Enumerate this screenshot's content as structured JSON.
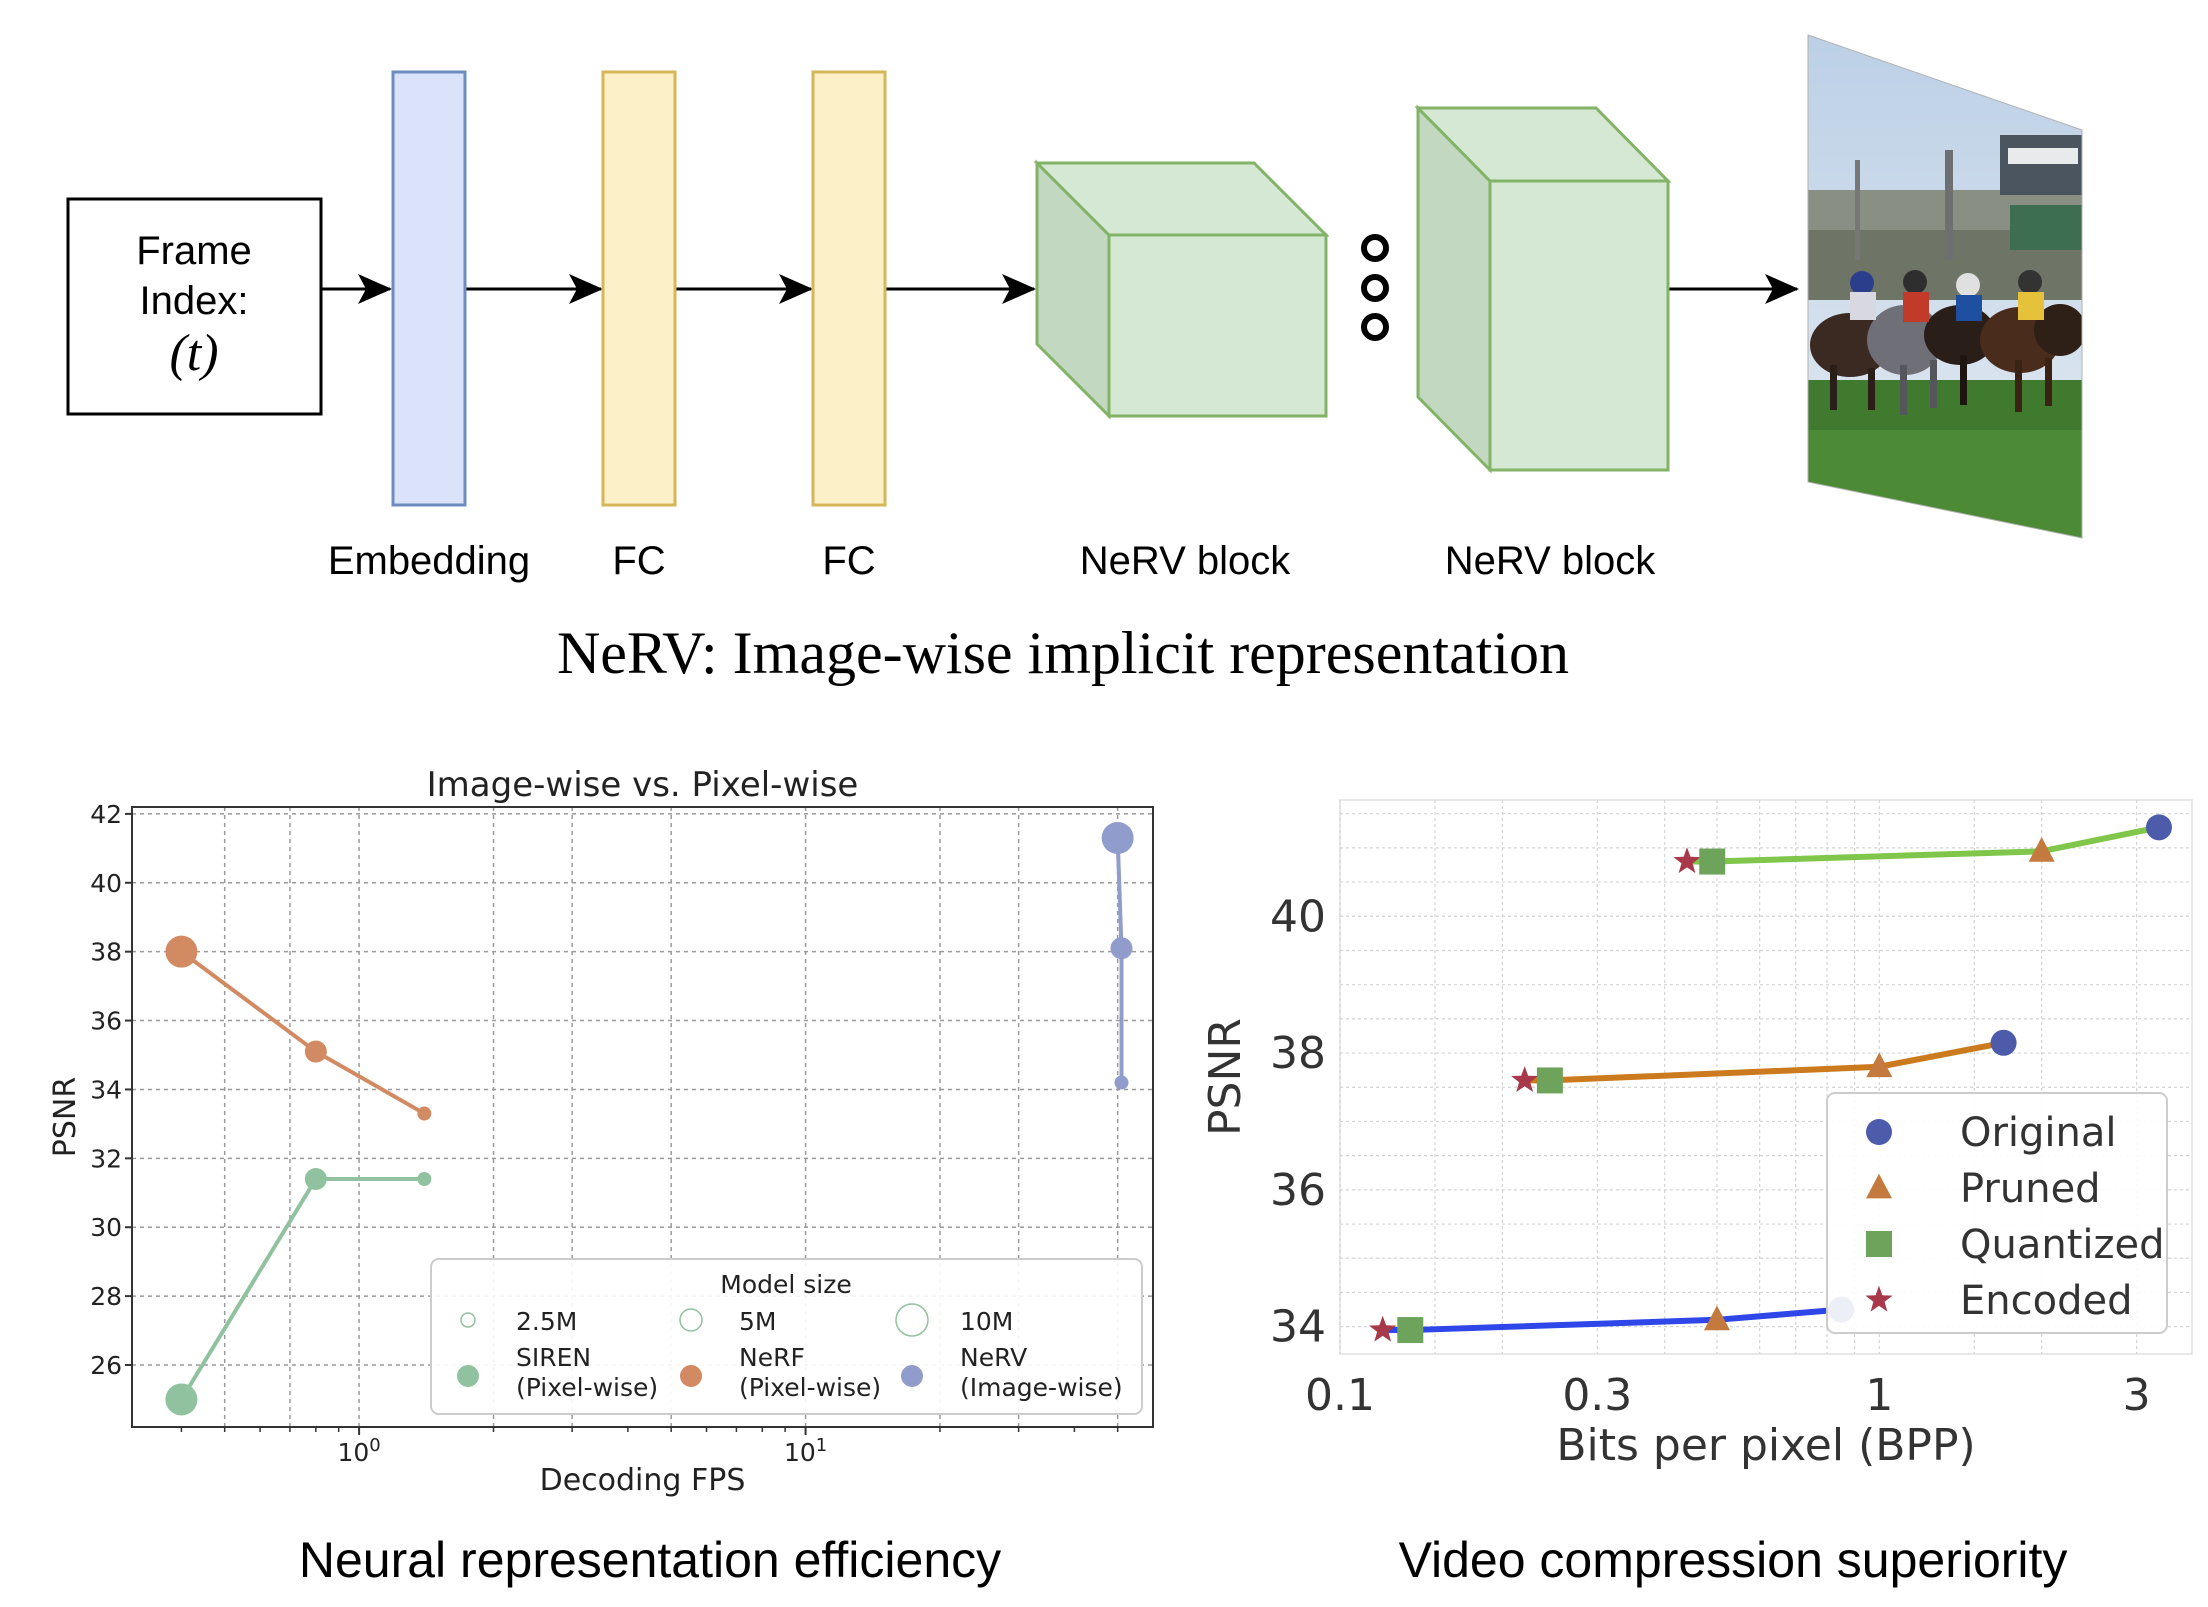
{
  "diagram": {
    "frame_box": {
      "line1": "Frame",
      "line2": "Index:",
      "line3": "(t)"
    },
    "layers": [
      {
        "label": "Embedding",
        "color": "#dae3f9",
        "border": "#6c8ebf"
      },
      {
        "label": "FC",
        "color": "#fbf0c8",
        "border": "#d6b656"
      },
      {
        "label": "FC",
        "color": "#fbf0c8",
        "border": "#d6b656"
      },
      {
        "label": "NeRV block",
        "color": "#d5e8d4",
        "border": "#82b366"
      },
      {
        "label": "NeRV block",
        "color": "#d5e8d4",
        "border": "#82b366"
      }
    ],
    "output_icon": "video-frame-image",
    "title": "NeRV: Image-wise implicit representation"
  },
  "captions": {
    "left": "Neural representation efficiency",
    "right": "Video compression superiority"
  },
  "chart_data": [
    {
      "type": "scatter",
      "title": "Image-wise vs. Pixel-wise",
      "xlabel": "Decoding FPS",
      "ylabel": "PSNR",
      "xscale": "log",
      "xticks": [
        {
          "value": 1,
          "base": "10",
          "exp": "0"
        },
        {
          "value": 10,
          "base": "10",
          "exp": "1"
        }
      ],
      "yticks": [
        26,
        28,
        30,
        32,
        34,
        36,
        38,
        40,
        42
      ],
      "xlim": [
        0.31,
        60
      ],
      "ylim": [
        24.2,
        42.2
      ],
      "grid": true,
      "legend": {
        "position": "lower-right",
        "title": "Model size",
        "sizes": [
          "2.5M",
          "5M",
          "10M"
        ],
        "entries": [
          {
            "line1": "SIREN",
            "line2": "(Pixel-wise)"
          },
          {
            "line1": "NeRF",
            "line2": "(Pixel-wise)"
          },
          {
            "line1": "NeRV",
            "line2": "(Image-wise)"
          }
        ]
      },
      "series": [
        {
          "name": "SIREN (Pixel-wise)",
          "color": "#91c2a0",
          "points": [
            [
              0.4,
              25.0,
              "10M"
            ],
            [
              0.8,
              31.4,
              "5M"
            ],
            [
              1.4,
              31.4,
              "2.5M"
            ]
          ]
        },
        {
          "name": "NeRF (Pixel-wise)",
          "color": "#d28a62",
          "points": [
            [
              0.4,
              38.0,
              "10M"
            ],
            [
              0.8,
              35.1,
              "5M"
            ],
            [
              1.4,
              33.3,
              "2.5M"
            ]
          ]
        },
        {
          "name": "NeRV (Image-wise)",
          "color": "#909ccc",
          "points": [
            [
              50,
              41.3,
              "10M"
            ],
            [
              51,
              38.1,
              "5M"
            ],
            [
              51,
              34.2,
              "2.5M"
            ]
          ]
        }
      ]
    },
    {
      "type": "line",
      "xlabel": "Bits per pixel (BPP)",
      "ylabel": "PSNR",
      "xscale": "log",
      "xticks": [
        {
          "value": 0.1,
          "label": "0.1"
        },
        {
          "value": 0.3,
          "label": "0.3"
        },
        {
          "value": 1,
          "label": "1"
        },
        {
          "value": 3,
          "label": "3"
        }
      ],
      "yticks": [
        34,
        36,
        38,
        40
      ],
      "xlim": [
        0.1,
        3.8
      ],
      "ylim": [
        33.6,
        41.7
      ],
      "grid": true,
      "legend": {
        "position": "lower-right",
        "entries": [
          {
            "name": "Original",
            "marker": "circle",
            "color": "#4c5cab"
          },
          {
            "name": "Pruned",
            "marker": "triangle",
            "color": "#c4793e"
          },
          {
            "name": "Quantized",
            "marker": "square",
            "color": "#6ea35c"
          },
          {
            "name": "Encoded",
            "marker": "star",
            "color": "#a8394b"
          }
        ]
      },
      "series": [
        {
          "color": "#2f47e8",
          "points": [
            [
              0.12,
              33.95,
              "star"
            ],
            [
              0.135,
              33.95,
              "square"
            ],
            [
              0.5,
              34.1,
              "triangle"
            ],
            [
              0.85,
              34.25,
              "circle"
            ]
          ]
        },
        {
          "color": "#cc7a1e",
          "points": [
            [
              0.22,
              37.6,
              "star"
            ],
            [
              0.245,
              37.6,
              "square"
            ],
            [
              1.0,
              37.8,
              "triangle"
            ],
            [
              1.7,
              38.15,
              "circle"
            ]
          ]
        },
        {
          "color": "#7fc64a",
          "points": [
            [
              0.44,
              40.8,
              "star"
            ],
            [
              0.49,
              40.8,
              "square"
            ],
            [
              2.0,
              40.95,
              "triangle"
            ],
            [
              3.3,
              41.3,
              "circle"
            ]
          ]
        }
      ]
    }
  ]
}
